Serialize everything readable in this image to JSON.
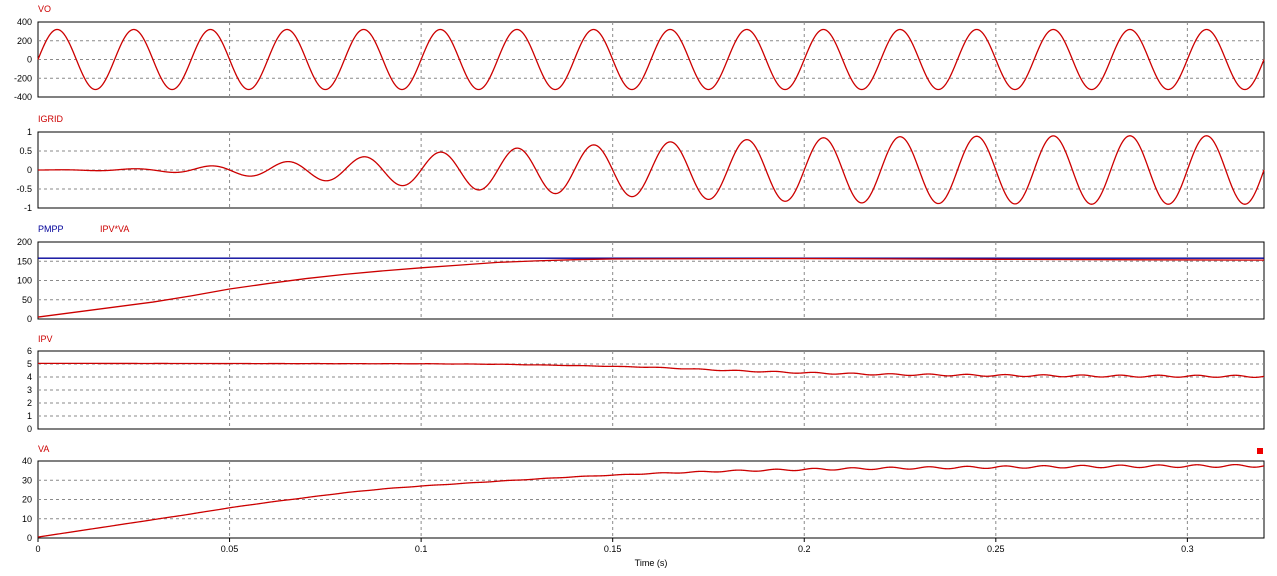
{
  "chart_data": {
    "type": "line",
    "xlabel": "Time (s)",
    "xlim": [
      0,
      0.32
    ],
    "x_ticks": [
      "0",
      "0.05",
      "0.1",
      "0.15",
      "0.2",
      "0.25",
      "0.3"
    ],
    "x_tick_values": [
      0,
      0.05,
      0.1,
      0.15,
      0.2,
      0.25,
      0.3
    ],
    "grid": true,
    "panels": [
      {
        "id": "vo",
        "ylim": [
          -400,
          400
        ],
        "y_ticks": [
          "400",
          "200",
          "0",
          "-200",
          "-400"
        ],
        "y_tick_values": [
          400,
          200,
          0,
          -200,
          -400
        ],
        "series": [
          {
            "name": "VO",
            "color": "#cc0000",
            "kind": "sine",
            "frequency_hz": 50,
            "amplitude": [
              [
                0,
                320
              ],
              [
                0.32,
                320
              ]
            ],
            "baseline": [
              [
                0,
                0
              ],
              [
                0.32,
                0
              ]
            ]
          }
        ]
      },
      {
        "id": "igrid",
        "ylim": [
          -1,
          1
        ],
        "y_ticks": [
          "1",
          "0.5",
          "0",
          "-0.5",
          "-1"
        ],
        "y_tick_values": [
          1,
          0.5,
          0,
          -0.5,
          -1
        ],
        "series": [
          {
            "name": "IGRID",
            "color": "#cc0000",
            "kind": "sine",
            "frequency_hz": 50,
            "amplitude": [
              [
                0,
                0
              ],
              [
                0.01,
                0.01
              ],
              [
                0.03,
                0.04
              ],
              [
                0.05,
                0.13
              ],
              [
                0.07,
                0.25
              ],
              [
                0.09,
                0.38
              ],
              [
                0.11,
                0.5
              ],
              [
                0.13,
                0.6
              ],
              [
                0.15,
                0.68
              ],
              [
                0.17,
                0.76
              ],
              [
                0.19,
                0.81
              ],
              [
                0.21,
                0.86
              ],
              [
                0.23,
                0.88
              ],
              [
                0.25,
                0.89
              ],
              [
                0.27,
                0.9
              ],
              [
                0.29,
                0.9
              ],
              [
                0.32,
                0.9
              ]
            ],
            "baseline": [
              [
                0,
                0
              ],
              [
                0.32,
                0
              ]
            ]
          }
        ]
      },
      {
        "id": "power",
        "ylim": [
          0,
          200
        ],
        "y_ticks": [
          "200",
          "150",
          "100",
          "50",
          "0"
        ],
        "y_tick_values": [
          200,
          150,
          100,
          50,
          0
        ],
        "series": [
          {
            "name": "PMPP",
            "color": "#000099",
            "kind": "points",
            "points": [
              [
                0,
                158
              ],
              [
                0.32,
                158
              ]
            ]
          },
          {
            "name": "IPV*VA",
            "color": "#cc0000",
            "kind": "points",
            "points": [
              [
                0,
                5
              ],
              [
                0.01,
                18
              ],
              [
                0.02,
                31
              ],
              [
                0.03,
                44
              ],
              [
                0.04,
                60
              ],
              [
                0.05,
                78
              ],
              [
                0.06,
                92
              ],
              [
                0.07,
                105
              ],
              [
                0.08,
                116
              ],
              [
                0.09,
                125
              ],
              [
                0.1,
                133
              ],
              [
                0.11,
                140
              ],
              [
                0.12,
                147
              ],
              [
                0.13,
                151
              ],
              [
                0.14,
                154
              ],
              [
                0.15,
                156
              ],
              [
                0.2,
                157
              ],
              [
                0.25,
                155
              ],
              [
                0.28,
                154
              ],
              [
                0.32,
                153
              ]
            ]
          }
        ]
      },
      {
        "id": "ipv",
        "ylim": [
          0,
          6
        ],
        "y_ticks": [
          "6",
          "5",
          "4",
          "3",
          "2",
          "1",
          "0"
        ],
        "y_tick_values": [
          6,
          5,
          4,
          3,
          2,
          1,
          0
        ],
        "series": [
          {
            "name": "IPV",
            "color": "#cc0000",
            "kind": "sine",
            "frequency_hz": 100,
            "amplitude": [
              [
                0,
                0
              ],
              [
                0.15,
                0.01
              ],
              [
                0.2,
                0.05
              ],
              [
                0.25,
                0.07
              ],
              [
                0.32,
                0.08
              ]
            ],
            "baseline": [
              [
                0,
                5.05
              ],
              [
                0.1,
                5.02
              ],
              [
                0.12,
                4.98
              ],
              [
                0.14,
                4.88
              ],
              [
                0.16,
                4.75
              ],
              [
                0.18,
                4.5
              ],
              [
                0.2,
                4.32
              ],
              [
                0.22,
                4.2
              ],
              [
                0.25,
                4.12
              ],
              [
                0.28,
                4.07
              ],
              [
                0.32,
                4.05
              ]
            ]
          }
        ]
      },
      {
        "id": "va",
        "ylim": [
          0,
          40
        ],
        "y_ticks": [
          "40",
          "30",
          "20",
          "10",
          "0"
        ],
        "y_tick_values": [
          40,
          30,
          20,
          10,
          0
        ],
        "series": [
          {
            "name": "VA",
            "color": "#cc0000",
            "kind": "sine",
            "frequency_hz": 100,
            "amplitude": [
              [
                0,
                0
              ],
              [
                0.15,
                0.1
              ],
              [
                0.2,
                0.5
              ],
              [
                0.25,
                0.6
              ],
              [
                0.32,
                0.7
              ]
            ],
            "baseline": [
              [
                0,
                0.5
              ],
              [
                0.01,
                3.5
              ],
              [
                0.02,
                6.5
              ],
              [
                0.03,
                9.5
              ],
              [
                0.04,
                12.5
              ],
              [
                0.05,
                15.7
              ],
              [
                0.06,
                18.5
              ],
              [
                0.07,
                21
              ],
              [
                0.08,
                23.5
              ],
              [
                0.09,
                25.5
              ],
              [
                0.1,
                27
              ],
              [
                0.12,
                29.5
              ],
              [
                0.14,
                31.8
              ],
              [
                0.16,
                33.5
              ],
              [
                0.18,
                34.8
              ],
              [
                0.2,
                35.6
              ],
              [
                0.22,
                36.2
              ],
              [
                0.25,
                36.8
              ],
              [
                0.28,
                37.2
              ],
              [
                0.32,
                37.5
              ]
            ]
          }
        ]
      }
    ]
  }
}
